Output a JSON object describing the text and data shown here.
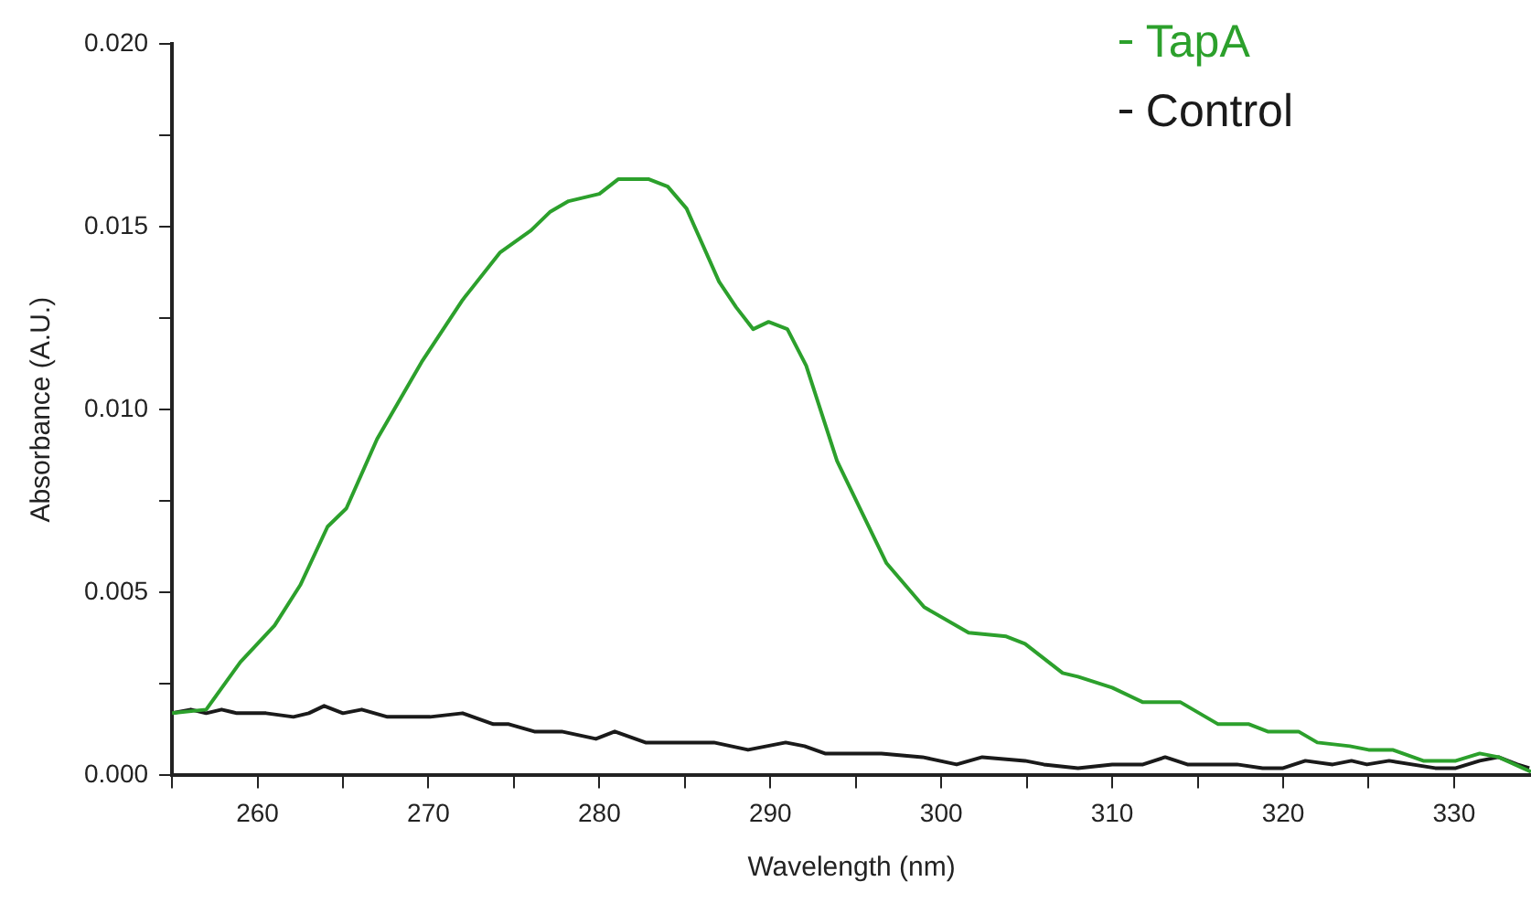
{
  "chart_data": {
    "type": "line",
    "xlabel": "Wavelength (nm)",
    "ylabel": "Absorbance (A.U.)",
    "xlim": [
      255,
      334.5
    ],
    "xticks": [
      {
        "value": 255,
        "label": null
      },
      260,
      {
        "value": 265,
        "label": null
      },
      270,
      {
        "value": 275,
        "label": null
      },
      280,
      {
        "value": 285,
        "label": null
      },
      290,
      {
        "value": 295,
        "label": null
      },
      300,
      {
        "value": 305,
        "label": null
      },
      310,
      {
        "value": 315,
        "label": null
      },
      320,
      {
        "value": 325,
        "label": null
      },
      330
    ],
    "ylim": [
      0,
      0.02
    ],
    "yticks": [
      {
        "value": 0,
        "label": "0.000"
      },
      {
        "value": 0.0025,
        "label": null
      },
      {
        "value": 0.005,
        "label": "0.005"
      },
      {
        "value": 0.0075,
        "label": null
      },
      {
        "value": 0.01,
        "label": "0.010"
      },
      {
        "value": 0.0125,
        "label": null
      },
      {
        "value": 0.015,
        "label": "0.015"
      },
      {
        "value": 0.0175,
        "label": null
      },
      {
        "value": 0.02,
        "label": "0.020"
      }
    ],
    "grid": false,
    "legend": "top right",
    "marker": "none",
    "line_style": "solid",
    "series": [
      {
        "name": "TapA",
        "color": "#2ca02c",
        "x": [
          255,
          257,
          259,
          261,
          262.5,
          264.1,
          265.2,
          267,
          269.6,
          272,
          274.2,
          276,
          277.1,
          278.2,
          280,
          281.1,
          282.9,
          284,
          285.1,
          287,
          288,
          289,
          289.9,
          291,
          292.1,
          293.9,
          296.8,
          299,
          301.6,
          303.8,
          304.9,
          307.1,
          308,
          310,
          311.8,
          314,
          316.2,
          318,
          319.1,
          320.9,
          322,
          323.9,
          325,
          326.4,
          328.2,
          330.1,
          331.5,
          332.6,
          334.5
        ],
        "values": [
          0.0017,
          0.0018,
          0.0031,
          0.0041,
          0.0052,
          0.0068,
          0.0073,
          0.0092,
          0.0113,
          0.013,
          0.0143,
          0.0149,
          0.0154,
          0.0157,
          0.0159,
          0.0163,
          0.0163,
          0.0161,
          0.0155,
          0.0135,
          0.0128,
          0.0122,
          0.0124,
          0.0122,
          0.0112,
          0.0086,
          0.0058,
          0.0046,
          0.0039,
          0.0038,
          0.0036,
          0.0028,
          0.0027,
          0.0024,
          0.002,
          0.002,
          0.0014,
          0.0014,
          0.0012,
          0.0012,
          0.0009,
          0.0008,
          0.0007,
          0.0007,
          0.0004,
          0.0004,
          0.0006,
          0.0005,
          0.0001
        ]
      },
      {
        "name": "Control",
        "color": "#1a1a1a",
        "x": [
          255,
          256.1,
          257,
          257.9,
          258.8,
          260.5,
          262.1,
          263,
          263.9,
          265,
          266.1,
          267.6,
          270.1,
          272,
          273.8,
          274.7,
          276.2,
          277.8,
          279.8,
          280.9,
          282.7,
          284.7,
          286.7,
          288.7,
          290.9,
          292,
          293.2,
          296.5,
          298.9,
          300.9,
          302.4,
          304.9,
          306,
          308,
          310,
          311.8,
          313.1,
          314.4,
          317.3,
          318.8,
          320,
          321.3,
          322.9,
          324,
          324.9,
          326.2,
          328.9,
          330.1,
          331.5,
          332.6,
          333.7,
          334.4
        ],
        "values": [
          0.0017,
          0.0018,
          0.0017,
          0.0018,
          0.0017,
          0.0017,
          0.0016,
          0.0017,
          0.0019,
          0.0017,
          0.0018,
          0.0016,
          0.0016,
          0.0017,
          0.0014,
          0.0014,
          0.0012,
          0.0012,
          0.001,
          0.0012,
          0.0009,
          0.0009,
          0.0009,
          0.0007,
          0.0009,
          0.0008,
          0.0006,
          0.0006,
          0.0005,
          0.0003,
          0.0005,
          0.0004,
          0.0003,
          0.0002,
          0.0003,
          0.0003,
          0.0005,
          0.0003,
          0.0003,
          0.0002,
          0.0002,
          0.0004,
          0.0003,
          0.0004,
          0.0003,
          0.0004,
          0.0002,
          0.0002,
          0.0004,
          0.0005,
          0.0003,
          0.0002
        ]
      }
    ]
  }
}
